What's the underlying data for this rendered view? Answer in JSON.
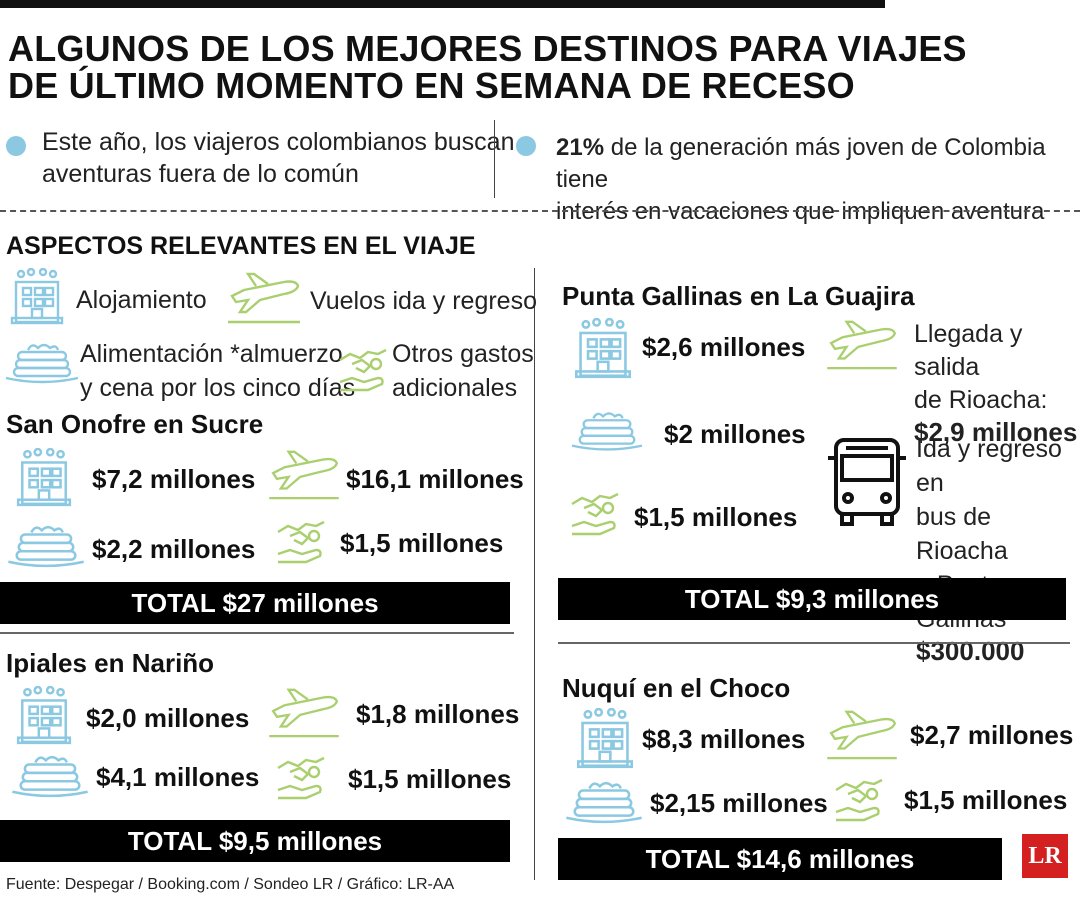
{
  "title": {
    "line1": "ALGUNOS DE LOS MEJORES DESTINOS PARA VIAJES",
    "line2": "DE ÚLTIMO MOMENTO EN SEMANA DE RECESO"
  },
  "intro": {
    "left_line1": "Este año, los viajeros colombianos buscan",
    "left_line2": "aventuras fuera de lo común",
    "right_bold": "21%",
    "right_line1_rest": " de la generación más joven de Colombia tiene",
    "right_line2": "interés en vacaciones que impliquen aventura"
  },
  "aspects": {
    "heading": "ASPECTOS RELEVANTES EN EL VIAJE",
    "lodging": "Alojamiento",
    "flights": "Vuelos ida y regreso",
    "food_line1": "Alimentación *almuerzo",
    "food_line2": "y cena por los cinco días",
    "other_line1": "Otros gastos",
    "other_line2": "adicionales"
  },
  "san_onofre": {
    "name": "San Onofre en Sucre",
    "lodging": "$7,2 millones",
    "flights": "$16,1 millones",
    "food": "$2,2 millones",
    "other": "$1,5 millones",
    "total": "TOTAL $27 millones"
  },
  "ipiales": {
    "name": "Ipiales en Nariño",
    "lodging": "$2,0 millones",
    "flights": "$1,8 millones",
    "food": "$4,1 millones",
    "other": "$1,5 millones",
    "total": "TOTAL $9,5 millones"
  },
  "punta_gallinas": {
    "name": "Punta Gallinas en La Guajira",
    "lodging": "$2,6 millones",
    "flight_line1": "Llegada y salida",
    "flight_line2": "de Rioacha:",
    "flight_value": "$2,9 millones",
    "food": "$2 millones",
    "bus_line1": "Ida y regreso en",
    "bus_line2": "bus de Rioacha",
    "bus_line3": "a Punta Gallinas",
    "bus_value": "$300.000",
    "other": "$1,5 millones",
    "total": "TOTAL $9,3 millones"
  },
  "nuqui": {
    "name": "Nuquí en el Choco",
    "lodging": "$8,3 millones",
    "flights": "$2,7 millones",
    "food": "$2,15 millones",
    "other": "$1,5 millones",
    "total": "TOTAL $14,6 millones"
  },
  "source": "Fuente: Despegar / Booking.com / Sondeo LR / Gráfico: LR-AA",
  "logo": "LR",
  "colors": {
    "blue_icon": "#8bc8e2",
    "green_icon": "#a9cf6e",
    "dot": "#8bc8e2",
    "bar": "#000000",
    "logo": "#d42020"
  },
  "icons": [
    "hotel-icon",
    "airplane-icon",
    "pancakes-icon",
    "handshake-money-icon",
    "bus-icon"
  ]
}
